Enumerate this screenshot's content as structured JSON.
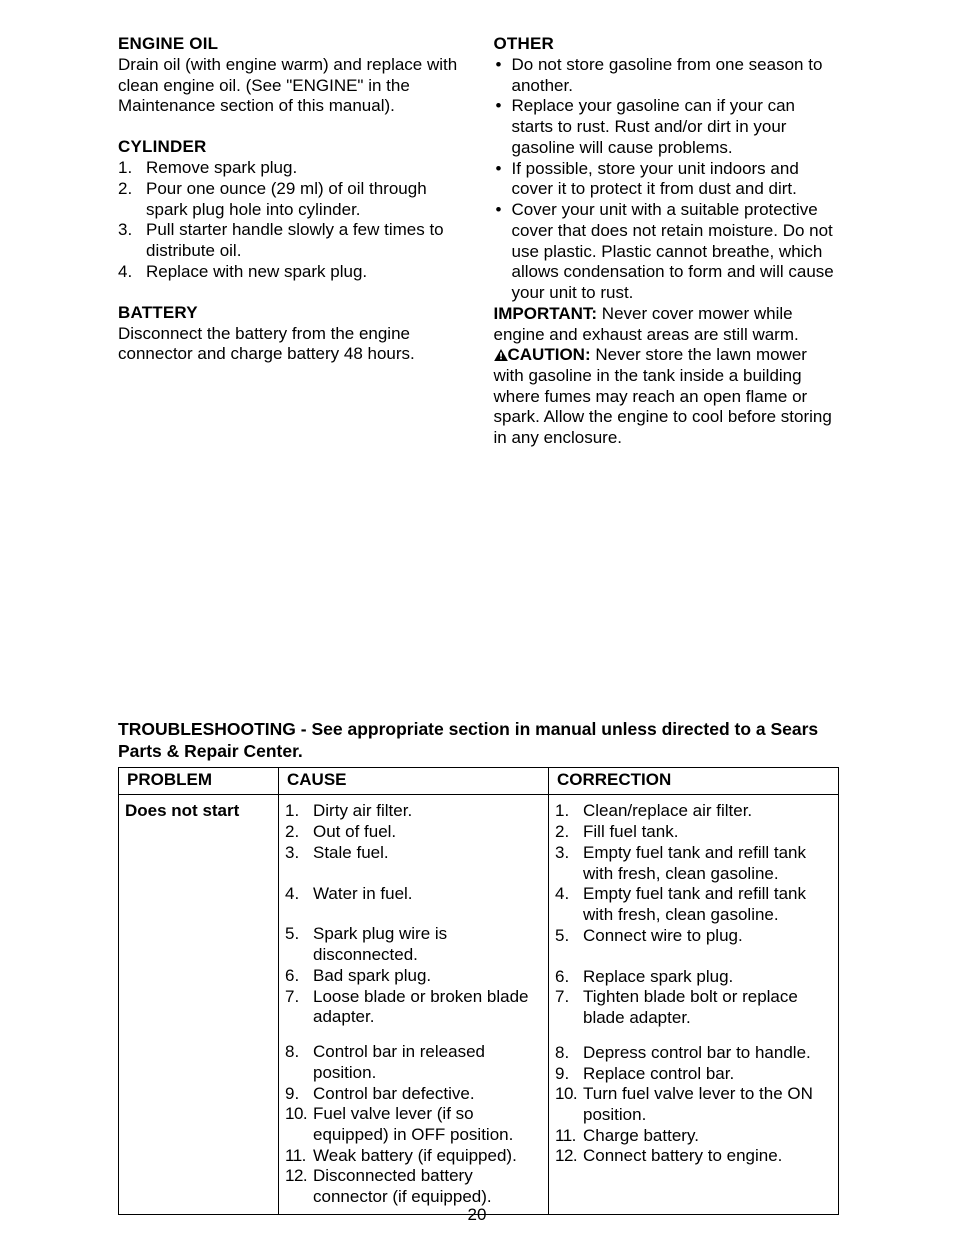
{
  "left": {
    "engineOil": {
      "title": "ENGINE OIL",
      "body": "Drain oil (with engine warm) and replace with clean engine oil.  (See \"ENGINE\" in the Maintenance section of this manual)."
    },
    "cylinder": {
      "title": "CYLINDER",
      "items": [
        "Remove spark plug.",
        "Pour one ounce (29 ml) of oil through spark plug hole into cylinder.",
        "Pull starter handle slowly a few times to distribute oil.",
        "Replace with new spark plug."
      ]
    },
    "battery": {
      "title": "BATTERY",
      "body": "Disconnect the battery from the engine connector and charge battery 48 hours."
    }
  },
  "right": {
    "other": {
      "title": "OTHER",
      "items": [
        "Do not store gasoline from one season to another.",
        "Replace your gasoline can if your can starts to rust.  Rust and/or dirt in your gasoline will cause problems.",
        "If possible, store your unit indoors and cover it to protect it from dust and dirt.",
        "Cover your unit with a suitable protective cover that does not retain moisture.  Do not use plastic.  Plastic cannot breathe, which allows condensation to form and will cause your unit to rust."
      ],
      "importantLabel": "IMPORTANT:",
      "importantBody": "  Never cover mower while engine and exhaust areas are still warm.",
      "cautionLabel": "CAUTION:",
      "cautionBody": "  Never store the lawn mower with gasoline in the tank inside a building where fumes may reach an open flame or spark.  Allow the engine to cool before storing in any enclosure."
    }
  },
  "troubleshooting": {
    "title": "TROUBLESHOOTING - See appropriate section in manual unless directed to a Sears Parts & Repair Center.",
    "headers": {
      "problem": "PROBLEM",
      "cause": "CAUSE",
      "correction": "CORRECTION"
    },
    "row": {
      "problem": "Does not start",
      "causesA": [
        "Dirty air filter.",
        "Out of fuel.",
        "Stale fuel.",
        "Water in fuel.",
        "Spark plug wire is disconnected.",
        "Bad spark plug.",
        "Loose blade or broken blade adapter."
      ],
      "causesB": [
        "Control bar in released position.",
        "Control bar defective.",
        "Fuel valve lever (if so equipped) in OFF position.",
        "Weak battery (if equipped).",
        "Disconnected battery connector (if equipped)."
      ],
      "corrA": [
        "Clean/replace air filter.",
        "Fill fuel tank.",
        "Empty fuel tank and refill tank with fresh, clean gasoline.",
        "Empty fuel tank and refill tank with fresh, clean gasoline.",
        "Connect wire to plug.",
        "Replace spark plug.",
        "Tighten blade bolt or replace blade adapter."
      ],
      "corrB": [
        "Depress control bar to handle.",
        "Replace control bar.",
        "Turn fuel valve lever to the ON position.",
        "Charge battery.",
        "Connect battery to engine."
      ]
    }
  },
  "pageNumber": "20",
  "style": {
    "align3": [
      0,
      0,
      0,
      1,
      1,
      0,
      0
    ],
    "spacerAfter": [
      0,
      0,
      1,
      0,
      0,
      0,
      0
    ]
  }
}
